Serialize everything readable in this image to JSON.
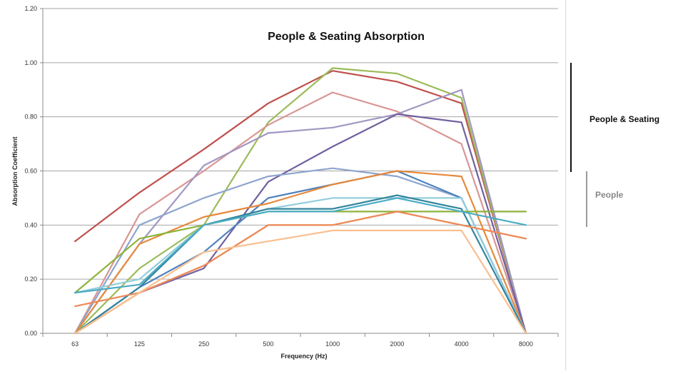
{
  "chart_data": {
    "type": "line",
    "title": "People & Seating Absorption",
    "xlabel": "Frequency (Hz)",
    "ylabel": "Absorption Coefficient",
    "categories": [
      "63",
      "125",
      "250",
      "500",
      "1000",
      "2000",
      "4000",
      "8000"
    ],
    "ylim": [
      0,
      1.2
    ],
    "yticks": [
      "0.00",
      "0.20",
      "0.40",
      "0.60",
      "0.80",
      "1.00",
      "1.20"
    ],
    "grid": true,
    "series": [
      {
        "color": "#c0504d",
        "values": [
          0.34,
          0.52,
          0.68,
          0.85,
          0.97,
          0.93,
          0.85,
          0.0
        ]
      },
      {
        "color": "#9bbb59",
        "values": [
          0.0,
          0.24,
          0.4,
          0.78,
          0.98,
          0.96,
          0.87,
          0.0
        ]
      },
      {
        "color": "#d99694",
        "values": [
          0.0,
          0.44,
          0.6,
          0.77,
          0.89,
          0.82,
          0.7,
          0.0
        ]
      },
      {
        "color": "#a297c2",
        "values": [
          0.0,
          0.33,
          0.62,
          0.74,
          0.76,
          0.81,
          0.9,
          0.0
        ]
      },
      {
        "color": "#7160a0",
        "values": [
          0.0,
          0.15,
          0.24,
          0.56,
          0.69,
          0.81,
          0.78,
          0.0
        ]
      },
      {
        "color": "#8ea5cd",
        "values": [
          0.0,
          0.4,
          0.5,
          0.58,
          0.61,
          0.58,
          0.5,
          0.0
        ]
      },
      {
        "color": "#4f81bd",
        "values": [
          0.0,
          0.17,
          0.3,
          0.5,
          0.55,
          0.6,
          0.5,
          0.0
        ]
      },
      {
        "color": "#e6893a",
        "values": [
          0.0,
          0.33,
          0.43,
          0.48,
          0.55,
          0.6,
          0.58,
          0.0
        ]
      },
      {
        "color": "#92cddc",
        "values": [
          0.15,
          0.2,
          0.4,
          0.46,
          0.5,
          0.5,
          0.5,
          0.0
        ]
      },
      {
        "color": "#31849b",
        "values": [
          0.0,
          0.17,
          0.4,
          0.46,
          0.46,
          0.51,
          0.46,
          0.0
        ]
      },
      {
        "color": "#8db33a",
        "values": [
          0.15,
          0.35,
          0.4,
          0.45,
          0.45,
          0.45,
          0.45,
          0.45
        ]
      },
      {
        "color": "#4bacc6",
        "values": [
          0.15,
          0.18,
          0.4,
          0.45,
          0.45,
          0.5,
          0.45,
          0.4
        ]
      },
      {
        "color": "#f79646",
        "values": [
          0.0,
          0.15,
          0.25,
          0.4,
          0.4,
          0.45,
          0.4,
          0.35
        ]
      },
      {
        "color": "#ec8a5a",
        "values": [
          0.1,
          0.15,
          0.25,
          0.4,
          0.4,
          0.45,
          0.4,
          0.35
        ]
      },
      {
        "color": "#fabf8f",
        "values": [
          0.0,
          0.15,
          0.3,
          0.34,
          0.38,
          0.38,
          0.38,
          0.0
        ]
      }
    ]
  },
  "side_labels": {
    "people_seating": "People & Seating",
    "people": "People"
  }
}
